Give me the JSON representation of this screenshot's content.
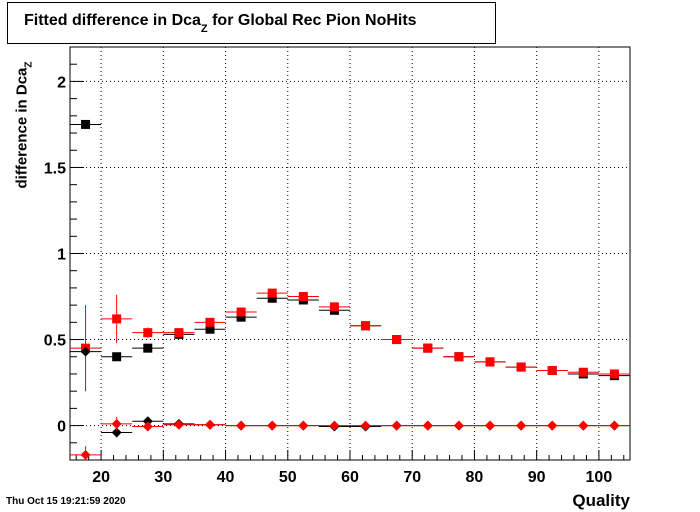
{
  "header": {
    "title_main": "Fitted difference in Dca",
    "title_sub": "Z",
    "title_rest": " for Global Rec Pion NoHits"
  },
  "axes": {
    "ylabel_main": "difference in Dca",
    "ylabel_sub": "Z",
    "xlabel": "Quality"
  },
  "footer": {
    "timestamp": "Thu Oct 15 19:21:59 2020"
  },
  "chart_data": {
    "type": "scatter",
    "xlim": [
      15,
      105
    ],
    "ylim": [
      -0.2,
      2.2
    ],
    "grid": true,
    "x_ticks": [
      20,
      30,
      40,
      50,
      60,
      70,
      80,
      90,
      100
    ],
    "y_ticks": [
      0,
      0.5,
      1,
      1.5,
      2
    ],
    "x_tick_labels": [
      "20",
      "30",
      "40",
      "50",
      "60",
      "70",
      "80",
      "90",
      "100"
    ],
    "y_tick_labels": [
      "0",
      "0.5",
      "1",
      "1.5",
      "2"
    ],
    "series": [
      {
        "marker": "square",
        "color": "#000000",
        "x": [
          17.5,
          22.5,
          27.5,
          32.5,
          37.5,
          42.5,
          47.5,
          52.5,
          57.5,
          62.5,
          67.5,
          72.5,
          77.5,
          82.5,
          87.5,
          92.5,
          97.5,
          102.5
        ],
        "y": [
          1.75,
          0.4,
          0.45,
          0.53,
          0.56,
          0.63,
          0.74,
          0.73,
          0.67,
          0.58,
          0.5,
          0.45,
          0.4,
          0.37,
          0.34,
          0.32,
          0.3,
          0.29
        ],
        "yerr": [
          0.02,
          0.02,
          0.02,
          0.02,
          0.02,
          0.02,
          0.02,
          0.02,
          0.02,
          0.01,
          0.01,
          0.01,
          0.01,
          0.01,
          0.01,
          0.01,
          0.01,
          0.01
        ]
      },
      {
        "marker": "square",
        "color": "#ff0000",
        "x": [
          17.5,
          22.5,
          27.5,
          32.5,
          37.5,
          42.5,
          47.5,
          52.5,
          57.5,
          62.5,
          67.5,
          72.5,
          77.5,
          82.5,
          87.5,
          92.5,
          97.5,
          102.5
        ],
        "y": [
          0.45,
          0.62,
          0.54,
          0.54,
          0.6,
          0.66,
          0.77,
          0.75,
          0.69,
          0.58,
          0.5,
          0.45,
          0.4,
          0.37,
          0.34,
          0.32,
          0.31,
          0.3
        ],
        "yerr": [
          0.25,
          0.14,
          0.03,
          0.02,
          0.02,
          0.02,
          0.02,
          0.02,
          0.02,
          0.01,
          0.01,
          0.01,
          0.01,
          0.01,
          0.01,
          0.01,
          0.01,
          0.01
        ]
      },
      {
        "marker": "diamond",
        "color": "#000000",
        "x": [
          17.5,
          22.5,
          27.5,
          32.5,
          37.5,
          42.5,
          47.5,
          52.5,
          57.5,
          62.5,
          67.5,
          72.5,
          77.5,
          82.5,
          87.5,
          92.5,
          97.5,
          102.5
        ],
        "y": [
          0.43,
          -0.04,
          0.025,
          0.01,
          0.005,
          0.0,
          0.0,
          0.0,
          -0.005,
          -0.005,
          0.0,
          0.0,
          0.0,
          0.0,
          0.0,
          0.0,
          0.0,
          0.0
        ],
        "yerr": [
          0.01,
          0.01,
          0.01,
          0.005,
          0.005,
          0.003,
          0.003,
          0.003,
          0.003,
          0.003,
          0.003,
          0.003,
          0.003,
          0.003,
          0.003,
          0.003,
          0.003,
          0.003
        ]
      },
      {
        "marker": "diamond",
        "color": "#ff0000",
        "x": [
          17.5,
          22.5,
          27.5,
          32.5,
          37.5,
          42.5,
          47.5,
          52.5,
          57.5,
          62.5,
          67.5,
          72.5,
          77.5,
          82.5,
          87.5,
          92.5,
          97.5,
          102.5
        ],
        "y": [
          -0.17,
          0.01,
          -0.005,
          0.005,
          0.005,
          0.0,
          0.0,
          0.0,
          0.0,
          0.0,
          0.0,
          0.0,
          0.0,
          0.0,
          0.0,
          0.0,
          0.0,
          0.0
        ],
        "yerr": [
          0.05,
          0.04,
          0.01,
          0.005,
          0.005,
          0.003,
          0.003,
          0.003,
          0.003,
          0.003,
          0.003,
          0.003,
          0.003,
          0.003,
          0.003,
          0.003,
          0.003,
          0.003
        ]
      }
    ]
  }
}
